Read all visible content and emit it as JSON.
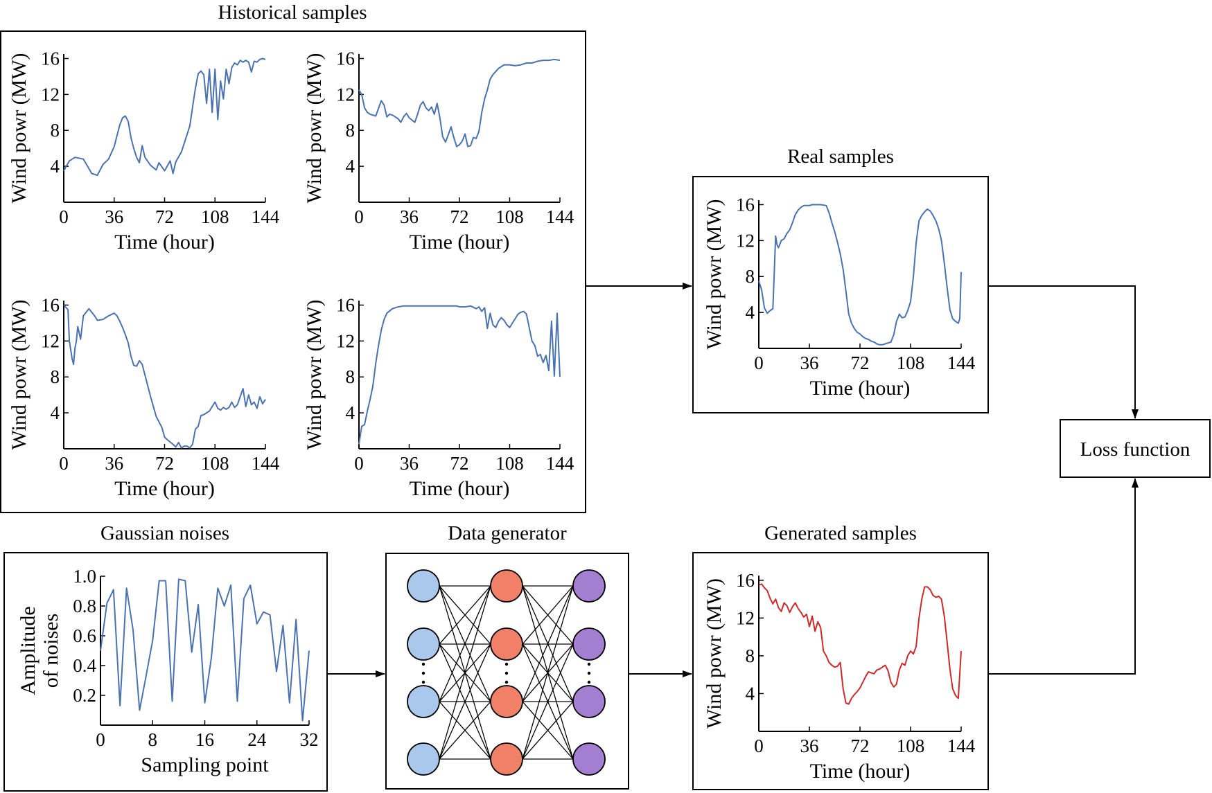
{
  "titles": {
    "historical": "Historical samples",
    "real": "Real samples",
    "gaussian": "Gaussian noises",
    "generator": "Data generator",
    "generated": "Generated samples",
    "loss": "Loss function"
  },
  "wind_axis": {
    "ylabel": "Wind powr (MW)",
    "xlabel": "Time (hour)",
    "xticks": [
      "0",
      "36",
      "72",
      "108",
      "144"
    ],
    "yticks": [
      "4",
      "8",
      "12",
      "16"
    ]
  },
  "noise_axis": {
    "ylabel_line1": "Amplitude",
    "ylabel_line2": "of noises",
    "xlabel": "Sampling point",
    "xticks": [
      "0",
      "8",
      "16",
      "24",
      "32"
    ],
    "yticks": [
      "0.2",
      "0.4",
      "0.6",
      "0.8",
      "1.0"
    ]
  },
  "generator_colors": {
    "input_layer": "#a9c8ec",
    "hidden_layer": "#f08068",
    "output_layer": "#a47ed0"
  },
  "series_colors": {
    "real": "#4a72b0",
    "generated": "#cc2a2a"
  },
  "chart_data": [
    {
      "type": "line",
      "id": "hist1",
      "xlim": [
        0,
        144
      ],
      "ylim": [
        0,
        16.5
      ],
      "x": [
        0,
        4,
        8,
        14,
        20,
        24,
        28,
        32,
        36,
        40,
        42,
        44,
        46,
        48,
        50,
        52,
        54,
        56,
        58,
        62,
        66,
        68,
        72,
        76,
        78,
        80,
        84,
        88,
        90,
        92,
        94,
        96,
        98,
        100,
        102,
        104,
        106,
        108,
        110,
        112,
        114,
        116,
        118,
        120,
        122,
        124,
        126,
        128,
        130,
        132,
        134,
        136,
        138,
        140,
        142,
        144
      ],
      "y": [
        3.5,
        4.6,
        5,
        4.8,
        3.2,
        3,
        4.2,
        4.8,
        6.2,
        8.6,
        9.4,
        9.6,
        9,
        7.2,
        6,
        5,
        4.4,
        6.3,
        5,
        4.1,
        3.6,
        4.4,
        3.5,
        4.6,
        3.2,
        4.5,
        5.6,
        7.5,
        8.5,
        10.6,
        12.7,
        14.3,
        14.6,
        14.2,
        11,
        14.8,
        10,
        14.8,
        9.2,
        13.5,
        11.5,
        14.8,
        13.2,
        15,
        15.5,
        15.3,
        15.8,
        15.6,
        15.8,
        15.6,
        14.5,
        15.7,
        15.6,
        15.9,
        16,
        15.9
      ]
    },
    {
      "type": "line",
      "id": "hist2",
      "xlim": [
        0,
        144
      ],
      "ylim": [
        0,
        16.5
      ],
      "x": [
        0,
        2,
        4,
        6,
        8,
        12,
        16,
        18,
        20,
        22,
        24,
        28,
        30,
        32,
        34,
        36,
        40,
        42,
        44,
        46,
        48,
        50,
        52,
        54,
        56,
        58,
        60,
        62,
        64,
        66,
        68,
        70,
        72,
        74,
        76,
        78,
        80,
        82,
        84,
        86,
        88,
        90,
        92,
        94,
        96,
        100,
        104,
        108,
        112,
        116,
        120,
        124,
        128,
        132,
        136,
        140,
        144
      ],
      "y": [
        12.5,
        12,
        10.5,
        10,
        9.8,
        9.6,
        11.3,
        10.8,
        9.5,
        9.8,
        9.7,
        9.3,
        8.9,
        9.5,
        9.9,
        9.4,
        8.9,
        9.8,
        10.8,
        11.2,
        10.5,
        10.2,
        10.6,
        9.8,
        11,
        9.4,
        7.3,
        6.7,
        7.5,
        8.4,
        7.2,
        6.2,
        6.4,
        6.8,
        7.6,
        6.2,
        6.3,
        7.2,
        7.1,
        7.9,
        10,
        11.5,
        12.5,
        13.7,
        14.2,
        14.9,
        15.3,
        15.3,
        15.2,
        15.3,
        15.5,
        15.5,
        15.7,
        15.8,
        15.8,
        15.9,
        15.8
      ]
    },
    {
      "type": "line",
      "id": "hist3",
      "xlim": [
        0,
        144
      ],
      "ylim": [
        0,
        16.5
      ],
      "x": [
        0,
        3,
        4,
        6,
        7,
        8,
        9,
        10,
        12,
        14,
        16,
        18,
        20,
        22,
        24,
        28,
        32,
        36,
        38,
        40,
        42,
        44,
        46,
        48,
        50,
        52,
        54,
        56,
        58,
        62,
        66,
        70,
        72,
        74,
        78,
        80,
        82,
        84,
        86,
        88,
        90,
        92,
        94,
        96,
        98,
        100,
        102,
        104,
        106,
        108,
        110,
        112,
        114,
        116,
        118,
        120,
        122,
        124,
        126,
        128,
        130,
        132,
        134,
        136,
        138,
        140,
        142,
        144
      ],
      "y": [
        16,
        15.5,
        12,
        10,
        9.4,
        11.2,
        12,
        13.6,
        12.2,
        14.8,
        15.2,
        15.6,
        15.2,
        14.8,
        14.3,
        14.4,
        14.8,
        15.1,
        14.8,
        14.2,
        13.5,
        12.7,
        11.8,
        10.3,
        9.3,
        9.2,
        9.8,
        9.4,
        8.2,
        5.8,
        3.6,
        2.4,
        1.3,
        1,
        0.5,
        0.2,
        0.7,
        0.1,
        0.3,
        0.3,
        0.1,
        0.5,
        2.2,
        2.5,
        3.7,
        3.8,
        4,
        4.2,
        4.7,
        5.2,
        4.5,
        4.3,
        4.6,
        4.4,
        4.6,
        5.2,
        4.6,
        4.9,
        5.8,
        6.7,
        4.7,
        6,
        4.9,
        5.2,
        4.5,
        5.8,
        5,
        5.5
      ]
    },
    {
      "type": "line",
      "id": "hist4",
      "xlim": [
        0,
        144
      ],
      "ylim": [
        0,
        16.5
      ],
      "x": [
        0,
        1,
        2,
        4,
        6,
        8,
        10,
        12,
        14,
        16,
        18,
        20,
        24,
        28,
        32,
        36,
        40,
        50,
        60,
        70,
        72,
        76,
        80,
        84,
        86,
        88,
        90,
        92,
        94,
        96,
        98,
        100,
        102,
        104,
        106,
        108,
        110,
        112,
        114,
        116,
        118,
        120,
        122,
        124,
        126,
        128,
        130,
        132,
        134,
        136,
        138,
        140,
        142,
        144
      ],
      "y": [
        0.5,
        1.5,
        2.5,
        2.7,
        4.2,
        5.5,
        7,
        9.5,
        11.5,
        13.2,
        14.4,
        15.1,
        15.6,
        15.8,
        15.9,
        15.9,
        15.9,
        15.9,
        15.9,
        15.9,
        15.8,
        15.8,
        15.9,
        15.6,
        15.8,
        15.3,
        15.7,
        13.4,
        15.1,
        13.8,
        13.5,
        14.2,
        14.6,
        14.3,
        13.8,
        13.5,
        14,
        14.5,
        15,
        15.2,
        15.3,
        15,
        13.5,
        12,
        11.5,
        10.3,
        10.5,
        9.6,
        10.4,
        8.7,
        14.2,
        8.1,
        15.1,
        8
      ]
    },
    {
      "type": "line",
      "id": "real",
      "xlim": [
        0,
        144
      ],
      "ylim": [
        0,
        16.5
      ],
      "x": [
        0,
        2,
        4,
        6,
        8,
        10,
        12,
        13,
        14,
        16,
        18,
        20,
        22,
        24,
        26,
        28,
        30,
        32,
        34,
        36,
        38,
        40,
        44,
        48,
        50,
        52,
        54,
        56,
        58,
        60,
        62,
        64,
        66,
        68,
        70,
        72,
        74,
        76,
        78,
        80,
        82,
        84,
        86,
        88,
        90,
        92,
        94,
        96,
        98,
        100,
        102,
        104,
        106,
        108,
        110,
        112,
        114,
        116,
        118,
        120,
        122,
        124,
        126,
        128,
        130,
        132,
        134,
        136,
        138,
        140,
        142,
        143,
        144
      ],
      "y": [
        7.5,
        6.5,
        4.5,
        3.9,
        4.2,
        4.4,
        12.5,
        11.5,
        11.2,
        12,
        12.2,
        12.8,
        13.2,
        14,
        14.9,
        15.4,
        15.7,
        15.9,
        15.9,
        15.9,
        16,
        16,
        16,
        15.9,
        15.1,
        14,
        13,
        11.8,
        10.5,
        8.8,
        6.4,
        3.8,
        2.8,
        2.2,
        1.8,
        1.6,
        1.3,
        1.1,
        1,
        0.8,
        0.7,
        0.5,
        0.4,
        0.4,
        0.5,
        0.6,
        0.7,
        1.5,
        3,
        3.8,
        3.4,
        3.5,
        4.2,
        5.2,
        8,
        11.8,
        14.2,
        14.8,
        15.2,
        15.5,
        15.3,
        14.8,
        14.2,
        13.3,
        12,
        9.5,
        6.8,
        4.3,
        3.3,
        3,
        2.8,
        3.3,
        8.5
      ]
    },
    {
      "type": "line",
      "id": "generated",
      "xlim": [
        0,
        144
      ],
      "ylim": [
        0,
        16.5
      ],
      "x": [
        0,
        2,
        4,
        6,
        8,
        10,
        12,
        14,
        16,
        18,
        20,
        22,
        24,
        26,
        28,
        30,
        32,
        34,
        36,
        38,
        40,
        42,
        44,
        46,
        48,
        50,
        52,
        54,
        56,
        58,
        60,
        62,
        64,
        66,
        68,
        70,
        72,
        74,
        76,
        78,
        80,
        82,
        84,
        86,
        88,
        90,
        92,
        94,
        96,
        98,
        100,
        102,
        104,
        106,
        108,
        110,
        112,
        114,
        116,
        118,
        120,
        122,
        124,
        126,
        128,
        130,
        132,
        134,
        136,
        138,
        140,
        142,
        144
      ],
      "y": [
        15.5,
        15.6,
        15.2,
        14.9,
        14.1,
        13.5,
        14,
        13.1,
        12.7,
        13.6,
        13.3,
        12.6,
        13.2,
        13.6,
        13,
        12.6,
        12.1,
        12.4,
        11.1,
        12.2,
        10.6,
        11.6,
        11,
        8.5,
        8,
        7.3,
        7,
        6.8,
        6.9,
        7.3,
        4.5,
        3,
        2.9,
        3.5,
        3.9,
        4.2,
        4.6,
        5.2,
        5.8,
        6.3,
        6.2,
        6.1,
        6.5,
        6.6,
        6.8,
        7,
        6.4,
        5.2,
        4.7,
        5,
        6.5,
        7.2,
        7,
        8,
        8.5,
        8.2,
        9,
        12,
        14,
        15.3,
        15.3,
        15,
        14.4,
        14.2,
        14.3,
        14,
        12.2,
        9.5,
        6.6,
        4.5,
        3.8,
        3.5,
        8.5
      ]
    },
    {
      "type": "line",
      "id": "noise",
      "xlim": [
        0,
        32
      ],
      "ylim": [
        0,
        1.0
      ],
      "x": [
        0,
        1,
        2,
        3,
        4,
        5,
        6,
        7,
        8,
        9,
        10,
        11,
        12,
        13,
        14,
        15,
        16,
        17,
        18,
        19,
        20,
        21,
        22,
        23,
        24,
        25,
        26,
        27,
        28,
        29,
        30,
        31,
        32
      ],
      "y": [
        0.5,
        0.82,
        0.91,
        0.13,
        0.92,
        0.64,
        0.1,
        0.33,
        0.57,
        0.97,
        0.97,
        0.16,
        0.98,
        0.97,
        0.49,
        0.81,
        0.15,
        0.45,
        0.92,
        0.8,
        0.94,
        0.16,
        0.85,
        0.94,
        0.68,
        0.76,
        0.74,
        0.36,
        0.67,
        0.15,
        0.71,
        0.03,
        0.5
      ]
    }
  ]
}
